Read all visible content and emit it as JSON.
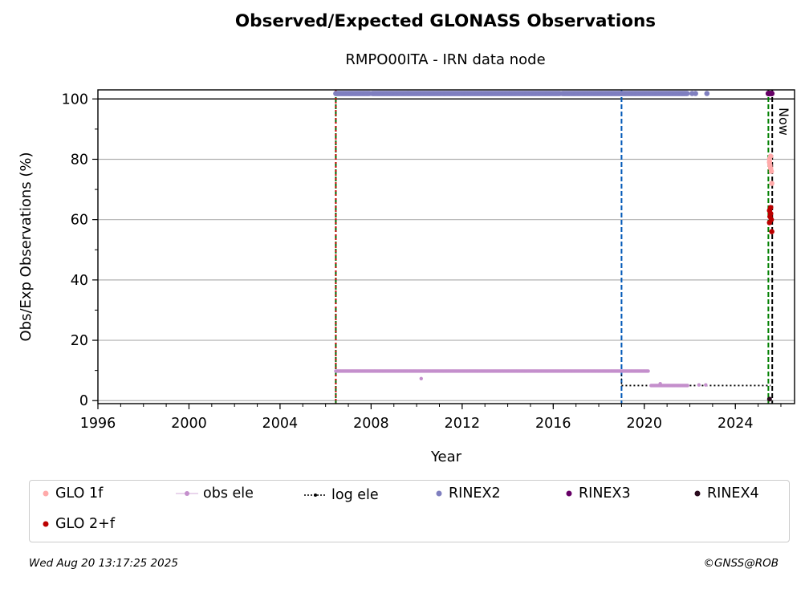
{
  "title": "Observed/Expected GLONASS Observations",
  "subtitle": "RMPO00ITA - IRN data node",
  "footer": {
    "timestamp": "Wed Aug 20 13:17:25 2025",
    "credit": "©GNSS@ROB"
  },
  "chart_data": {
    "type": "scatter",
    "title": "Observed/Expected GLONASS Observations",
    "subtitle": "RMPO00ITA - IRN data node",
    "xlabel": "Year",
    "ylabel": "Obs/Exp Observations (%)",
    "xlim": [
      1996,
      2026.6
    ],
    "ylim": [
      -1,
      103
    ],
    "xticks": [
      "1996",
      "2000",
      "2004",
      "2008",
      "2012",
      "2016",
      "2020",
      "2024"
    ],
    "yticks": [
      "0",
      "20",
      "40",
      "60",
      "80",
      "100"
    ],
    "grid": "horizontal",
    "now_label": "Now",
    "vlines": [
      {
        "x": 2006.45,
        "color": "#006400",
        "style": "dashed"
      },
      {
        "x": 2006.45,
        "color": "#cc0000",
        "style": "dotted"
      },
      {
        "x": 2019.0,
        "color": "#0057b7",
        "style": "dashed"
      },
      {
        "x": 2025.45,
        "color": "#008000",
        "style": "dashed"
      },
      {
        "x": 2025.62,
        "color": "#000000",
        "style": "dashed"
      }
    ],
    "series": [
      {
        "name": "RINEX2",
        "color": "#7f7fbf",
        "segments": [
          [
            2006.45,
            2007.95,
            101.8
          ],
          [
            2008.05,
            2016.3,
            101.8
          ],
          [
            2016.4,
            2021.9,
            101.8
          ]
        ],
        "points": [
          [
            2022.1,
            101.8
          ],
          [
            2022.25,
            101.8
          ],
          [
            2022.75,
            101.8
          ]
        ]
      },
      {
        "name": "obs ele",
        "color": "#c48fcc",
        "segments": [
          [
            2006.45,
            2020.2,
            9.8
          ],
          [
            2020.3,
            2021.9,
            5.0
          ]
        ],
        "points": [
          [
            2010.2,
            7.3
          ],
          [
            2020.7,
            5.6
          ],
          [
            2022.4,
            5.2
          ],
          [
            2022.7,
            5.2
          ]
        ]
      },
      {
        "name": "log ele",
        "color": "#000000",
        "steps": [
          [
            2006.45,
            2019.0,
            10
          ],
          [
            2019.0,
            2025.55,
            5
          ]
        ]
      },
      {
        "name": "RINEX3",
        "color": "#660066",
        "points": [
          [
            2025.45,
            101.8
          ],
          [
            2025.52,
            101.8
          ],
          [
            2025.6,
            101.8
          ]
        ]
      },
      {
        "name": "RINEX4",
        "color": "#2a0a1e",
        "points": [
          [
            2025.5,
            0.5
          ]
        ]
      },
      {
        "name": "GLO 1f",
        "color": "#ffaaaa",
        "points": [
          [
            2025.5,
            79
          ],
          [
            2025.52,
            78
          ],
          [
            2025.55,
            77
          ],
          [
            2025.58,
            76
          ],
          [
            2025.5,
            80
          ],
          [
            2025.55,
            81
          ],
          [
            2025.6,
            72
          ]
        ]
      },
      {
        "name": "GLO 2+f",
        "color": "#bb0000",
        "points": [
          [
            2025.5,
            63
          ],
          [
            2025.52,
            61
          ],
          [
            2025.55,
            62
          ],
          [
            2025.58,
            60
          ],
          [
            2025.5,
            59
          ],
          [
            2025.55,
            64
          ],
          [
            2025.6,
            56
          ]
        ]
      }
    ]
  },
  "legend": [
    {
      "label": "GLO 1f",
      "color": "#ffaaaa",
      "marker": "dot"
    },
    {
      "label": "obs ele",
      "color": "#c48fcc",
      "marker": "dotline"
    },
    {
      "label": "log ele",
      "color": "#000000",
      "marker": "dotted"
    },
    {
      "label": "RINEX2",
      "color": "#7f7fbf",
      "marker": "dot"
    },
    {
      "label": "RINEX3",
      "color": "#660066",
      "marker": "dot"
    },
    {
      "label": "RINEX4",
      "color": "#2a0a1e",
      "marker": "dot"
    },
    {
      "label": "GLO 2+f",
      "color": "#bb0000",
      "marker": "dot"
    }
  ]
}
